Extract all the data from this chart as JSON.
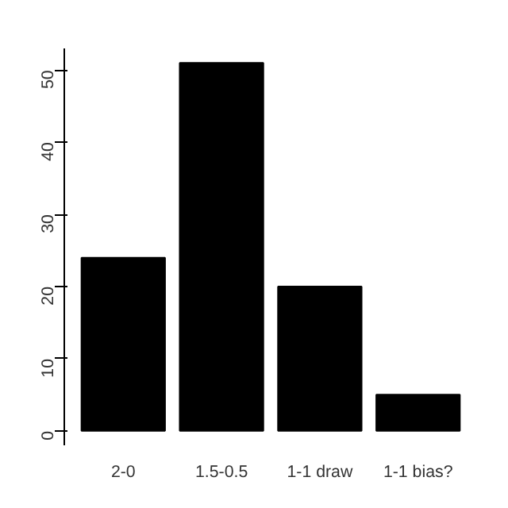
{
  "chart_data": {
    "type": "bar",
    "categories": [
      "2-0",
      "1.5-0.5",
      "1-1 draw",
      "1-1 bias?"
    ],
    "values": [
      24,
      51,
      20,
      5
    ],
    "color": "#000000",
    "ylim": [
      -2,
      53
    ],
    "yticks": [
      0,
      10,
      20,
      30,
      40,
      50
    ],
    "grid": false
  }
}
